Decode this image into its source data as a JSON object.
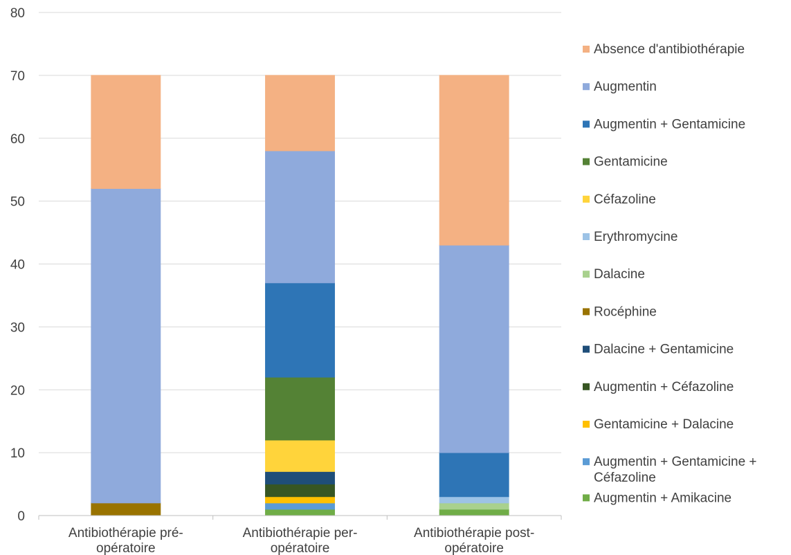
{
  "chart_data": {
    "type": "bar",
    "stacked": true,
    "title": "",
    "xlabel": "",
    "ylabel": "",
    "ylim": [
      0,
      80
    ],
    "yticks": [
      0,
      10,
      20,
      30,
      40,
      50,
      60,
      70,
      80
    ],
    "grid": true,
    "legend_position": "right",
    "categories": [
      [
        "Antibiothérapie pré-",
        "opératoire"
      ],
      [
        "Antibiothérapie per-",
        "opératoire"
      ],
      [
        "Antibiothérapie post-",
        "opératoire"
      ]
    ],
    "series": [
      {
        "name": "Augmentin + Amikacine",
        "color": "#70ad47",
        "values": [
          0,
          1,
          1
        ]
      },
      {
        "name": [
          "Augmentin + Gentamicine +",
          "Céfazoline"
        ],
        "color": "#5b9bd5",
        "values": [
          0,
          1,
          0
        ]
      },
      {
        "name": "Gentamicine + Dalacine",
        "color": "#ffc000",
        "values": [
          0,
          1,
          0
        ]
      },
      {
        "name": "Augmentin + Céfazoline",
        "color": "#375623",
        "values": [
          0,
          2,
          0
        ]
      },
      {
        "name": "Dalacine + Gentamicine",
        "color": "#1f4e79",
        "values": [
          0,
          2,
          0
        ]
      },
      {
        "name": "Rocéphine",
        "color": "#997300",
        "values": [
          2,
          0,
          0
        ]
      },
      {
        "name": "Dalacine",
        "color": "#a9d18e",
        "values": [
          0,
          0,
          1
        ]
      },
      {
        "name": "Erythromycine",
        "color": "#9dc3e6",
        "values": [
          0,
          0,
          1
        ]
      },
      {
        "name": "Céfazoline",
        "color": "#ffd43b",
        "values": [
          0,
          5,
          0
        ]
      },
      {
        "name": "Gentamicine",
        "color": "#548235",
        "values": [
          0,
          10,
          0
        ]
      },
      {
        "name": "Augmentin + Gentamicine",
        "color": "#2e75b6",
        "values": [
          0,
          15,
          7
        ]
      },
      {
        "name": "Augmentin",
        "color": "#8faadc",
        "values": [
          50,
          21,
          33
        ]
      },
      {
        "name": "Absence d'antibiothérapie",
        "color": "#f4b183",
        "values": [
          18,
          12,
          27
        ]
      }
    ]
  }
}
